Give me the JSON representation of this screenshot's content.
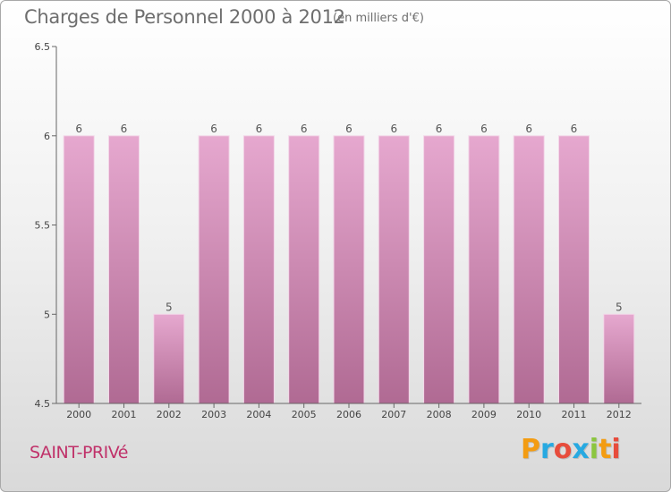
{
  "header": {
    "title": "Charges de Personnel 2000 à 2012",
    "subtitle": "(en milliers d'€)"
  },
  "footer": {
    "commune": "SAINT-PRIVé",
    "brand": "Proxiti"
  },
  "brand_colors": [
    "#f39c12",
    "#27a9e1",
    "#e74c3c",
    "#27a9e1",
    "#8cc63f",
    "#f39c12",
    "#e74c3c"
  ],
  "colors": {
    "bar_top": "#e6a8cf",
    "bar_bottom": "#b06a93",
    "accent": "#c0326a"
  },
  "chart_data": {
    "type": "bar",
    "title": "Charges de Personnel 2000 à 2012",
    "subtitle": "(en milliers d'€)",
    "categories": [
      "2000",
      "2001",
      "2002",
      "2003",
      "2004",
      "2005",
      "2006",
      "2007",
      "2008",
      "2009",
      "2010",
      "2011",
      "2012"
    ],
    "values": [
      6,
      6,
      5,
      6,
      6,
      6,
      6,
      6,
      6,
      6,
      6,
      6,
      5
    ],
    "data_labels": [
      "6",
      "6",
      "5",
      "6",
      "6",
      "6",
      "6",
      "6",
      "6",
      "6",
      "6",
      "6",
      "5"
    ],
    "ylim": [
      4.5,
      6.5
    ],
    "yticks": [
      4.5,
      5,
      5.5,
      6,
      6.5
    ],
    "ytick_labels": [
      "4.5",
      "5",
      "5.5",
      "6",
      "6.5"
    ],
    "grid": false,
    "legend": "none"
  }
}
